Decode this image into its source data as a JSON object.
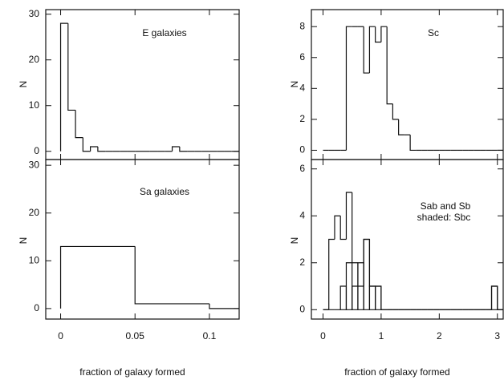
{
  "chart_data": [
    {
      "type": "histogram",
      "annotations": [
        "E galaxies"
      ],
      "ylabel": "N",
      "bins": [
        0,
        0.005,
        0.01,
        0.015,
        0.02,
        0.025,
        0.03,
        0.035,
        0.04,
        0.045,
        0.05,
        0.055,
        0.06,
        0.065,
        0.07,
        0.075,
        0.08,
        0.085,
        0.09,
        0.095,
        0.1,
        0.105,
        0.11,
        0.115,
        0.12
      ],
      "series": [
        {
          "color": "#111111",
          "values": [
            28,
            9,
            3,
            0,
            1,
            0,
            0,
            0,
            0,
            0,
            0,
            0,
            0,
            0,
            0,
            1,
            0,
            0,
            0,
            0,
            0,
            0,
            0,
            0
          ]
        }
      ],
      "xlim": [
        -0.01,
        0.12
      ],
      "ylim": [
        -1.8,
        31
      ],
      "xticks": [
        0,
        0.05,
        0.1
      ],
      "yticks": [
        0,
        10,
        20,
        30
      ],
      "xtick_labels": false
    },
    {
      "type": "histogram",
      "annotations": [
        "Sa galaxies"
      ],
      "ylabel": "N",
      "xlabel": "fraction of galaxy formed",
      "bins": [
        0,
        0.05,
        0.1,
        0.12
      ],
      "series": [
        {
          "color": "#111111",
          "values": [
            13,
            1,
            0
          ]
        }
      ],
      "xlim": [
        -0.01,
        0.12
      ],
      "ylim": [
        -2.2,
        31.2
      ],
      "xticks": [
        0,
        0.05,
        0.1
      ],
      "yticks": [
        0,
        10,
        20,
        30
      ],
      "xtick_labels": true
    },
    {
      "type": "histogram",
      "annotations": [
        "Sc"
      ],
      "ylabel": "N",
      "bins": [
        0,
        0.1,
        0.2,
        0.3,
        0.4,
        0.5,
        0.6,
        0.7,
        0.8,
        0.9,
        1,
        1.1,
        1.2,
        1.3,
        1.4,
        1.5,
        1.6,
        1.7,
        1.8,
        1.9,
        2,
        2.1,
        2.2,
        2.3,
        2.4,
        2.5,
        2.6,
        2.7,
        2.8,
        2.9,
        3,
        3.1
      ],
      "series": [
        {
          "color": "#111111",
          "values": [
            0,
            0,
            0,
            0,
            8,
            8,
            8,
            5,
            8,
            7,
            8,
            3,
            2,
            1,
            1,
            0,
            0,
            0,
            0,
            0,
            0,
            0,
            0,
            0,
            0,
            0,
            0,
            0,
            0,
            0,
            0
          ]
        }
      ],
      "xlim": [
        -0.2,
        3.1
      ],
      "ylim": [
        -0.6,
        9.1
      ],
      "xticks": [
        0,
        1,
        2,
        3
      ],
      "yticks": [
        0,
        2,
        4,
        6,
        8
      ],
      "xtick_labels": false
    },
    {
      "type": "histogram",
      "annotations": [
        "Sab and Sb",
        "shaded: Sbc"
      ],
      "ylabel": "N",
      "xlabel": "fraction of galaxy formed",
      "bins": [
        0,
        0.1,
        0.2,
        0.3,
        0.4,
        0.5,
        0.6,
        0.7,
        0.8,
        0.9,
        1,
        1.1,
        1.2,
        1.3,
        1.4,
        1.5,
        1.6,
        1.7,
        1.8,
        1.9,
        2,
        2.1,
        2.2,
        2.3,
        2.4,
        2.5,
        2.6,
        2.7,
        2.8,
        2.9,
        3,
        3.1
      ],
      "series": [
        {
          "color": "#111111",
          "values": [
            0,
            3,
            4,
            3,
            5,
            2,
            1,
            3,
            1,
            1,
            0,
            0,
            0,
            0,
            0,
            0,
            0,
            0,
            0,
            0,
            0,
            0,
            0,
            0,
            0,
            0,
            0,
            0,
            0,
            1,
            0
          ]
        },
        {
          "color": "#111111",
          "hatch": true,
          "values": [
            0,
            0,
            0,
            1,
            2,
            1,
            2,
            3,
            1,
            1,
            0,
            0,
            0,
            0,
            0,
            0,
            0,
            0,
            0,
            0,
            0,
            0,
            0,
            0,
            0,
            0,
            0,
            0,
            0,
            1,
            0
          ]
        }
      ],
      "xlim": [
        -0.2,
        3.1
      ],
      "ylim": [
        -0.4,
        6.4
      ],
      "xticks": [
        0,
        1,
        2,
        3
      ],
      "yticks": [
        0,
        2,
        4,
        6
      ],
      "xtick_labels": true
    }
  ]
}
